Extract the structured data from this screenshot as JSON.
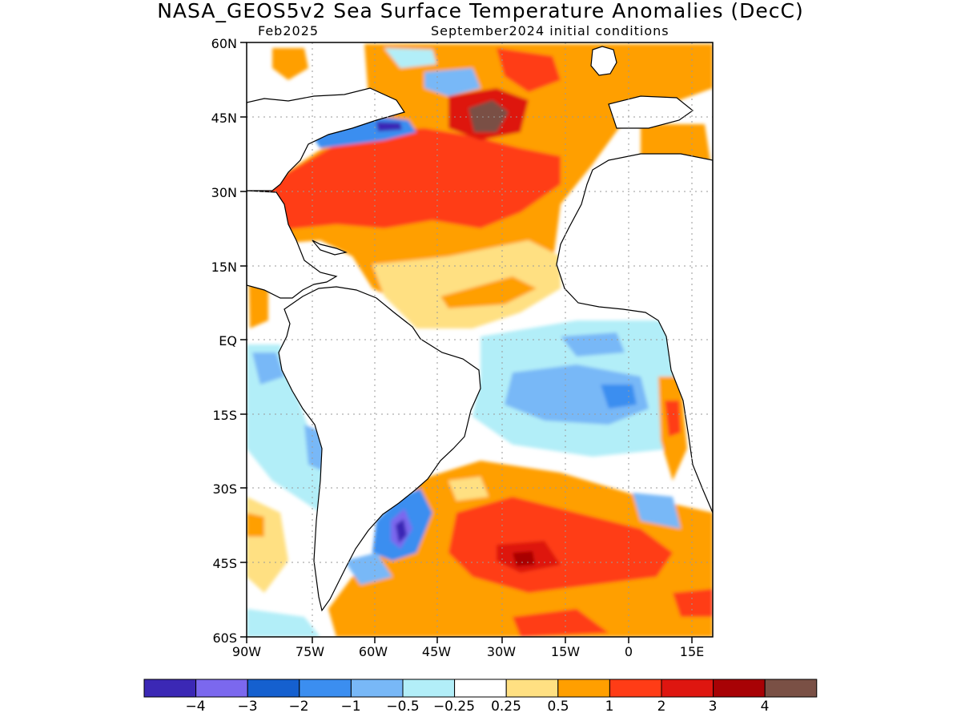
{
  "header": {
    "title": "NASA_GEOS5v2 Sea Surface Temperature Anomalies (DecC)",
    "left_subtitle": "Feb2025",
    "right_subtitle": "September2024 initial conditions"
  },
  "axes": {
    "lat_ticks": [
      "60N",
      "45N",
      "30N",
      "15N",
      "EQ",
      "15S",
      "30S",
      "45S",
      "60S"
    ],
    "lon_ticks": [
      "90W",
      "75W",
      "60W",
      "45W",
      "30W",
      "15W",
      "0",
      "15E"
    ]
  },
  "colorbar": {
    "colors": [
      "#3b28b5",
      "#7b68ee",
      "#1560cf",
      "#3b8ef0",
      "#78b8f7",
      "#b2eef8",
      "#ffffff",
      "#ffe082",
      "#ff9f00",
      "#ff3c16",
      "#de1610",
      "#a80205",
      "#7a5045"
    ],
    "labels": [
      "−4",
      "−3",
      "−2",
      "−1",
      "−0.5",
      "−0.25",
      "0.25",
      "0.5",
      "1",
      "2",
      "3",
      "4"
    ]
  }
}
